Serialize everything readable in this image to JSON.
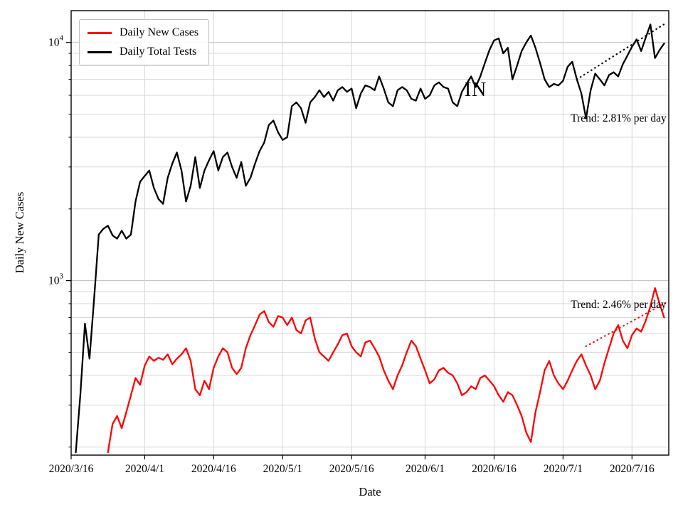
{
  "chart_data": {
    "type": "line",
    "title": "",
    "xlabel": "Date",
    "ylabel": "Daily New Cases",
    "y_scale": "log",
    "grid": true,
    "x_start_date": "2020/3/16",
    "x_range_days": [
      0,
      130
    ],
    "y_range": [
      185,
      13600
    ],
    "x_ticks": [
      {
        "day": 0,
        "label": "2020/3/16"
      },
      {
        "day": 16,
        "label": "2020/4/1"
      },
      {
        "day": 31,
        "label": "2020/4/16"
      },
      {
        "day": 46,
        "label": "2020/5/1"
      },
      {
        "day": 61,
        "label": "2020/5/16"
      },
      {
        "day": 77,
        "label": "2020/6/1"
      },
      {
        "day": 92,
        "label": "2020/6/16"
      },
      {
        "day": 107,
        "label": "2020/7/1"
      },
      {
        "day": 122,
        "label": "2020/7/16"
      }
    ],
    "y_ticks": [
      {
        "value": 1000,
        "base": "10",
        "exponent": "3"
      },
      {
        "value": 10000,
        "base": "10",
        "exponent": "4"
      }
    ],
    "legend": {
      "position": "upper left"
    },
    "annotations": [
      {
        "text": "IN",
        "day": 88,
        "value": 6300
      }
    ],
    "series": [
      {
        "name": "Daily New Cases",
        "color": "#ff0000",
        "start_day": 8,
        "values": [
          190,
          250,
          270,
          240,
          280,
          330,
          390,
          365,
          440,
          480,
          460,
          475,
          465,
          490,
          445,
          470,
          490,
          520,
          460,
          350,
          330,
          380,
          350,
          430,
          480,
          520,
          500,
          430,
          405,
          430,
          520,
          590,
          650,
          720,
          745,
          670,
          640,
          710,
          700,
          650,
          700,
          620,
          600,
          680,
          700,
          570,
          500,
          480,
          460,
          500,
          540,
          590,
          600,
          530,
          500,
          480,
          550,
          560,
          520,
          480,
          420,
          380,
          350,
          400,
          440,
          500,
          560,
          530,
          470,
          420,
          370,
          385,
          420,
          430,
          410,
          400,
          370,
          330,
          340,
          360,
          350,
          390,
          400,
          380,
          360,
          330,
          310,
          340,
          330,
          300,
          270,
          230,
          210,
          280,
          340,
          420,
          460,
          400,
          370,
          350,
          380,
          420,
          460,
          490,
          440,
          400,
          350,
          380,
          450,
          520,
          600,
          650,
          560,
          520,
          590,
          630,
          610,
          680,
          780,
          930,
          800,
          700
        ],
        "trend": {
          "label": "Trend: 2.46% per day",
          "rate_percent_per_day": 2.46,
          "line": {
            "day1": 112,
            "value1": 530,
            "day2": 129.5,
            "value2": 810
          },
          "label_pos": {
            "day": 129.5,
            "value": 790
          }
        }
      },
      {
        "name": "Daily Total Tests",
        "color": "#000000",
        "start_day": 1,
        "values": [
          190,
          330,
          660,
          470,
          840,
          1560,
          1650,
          1700,
          1550,
          1500,
          1620,
          1500,
          1560,
          2150,
          2600,
          2750,
          2900,
          2450,
          2200,
          2100,
          2700,
          3100,
          3450,
          2900,
          2150,
          2500,
          3300,
          2450,
          2900,
          3200,
          3500,
          2900,
          3300,
          3450,
          3000,
          2700,
          3150,
          2500,
          2700,
          3100,
          3500,
          3800,
          4500,
          4700,
          4200,
          3900,
          4000,
          5400,
          5600,
          5300,
          4600,
          5600,
          5900,
          6300,
          5900,
          6200,
          5700,
          6300,
          6500,
          6200,
          6400,
          5300,
          6100,
          6600,
          6500,
          6300,
          7200,
          6400,
          5600,
          5400,
          6300,
          6500,
          6300,
          5800,
          5700,
          6400,
          5800,
          6000,
          6600,
          6800,
          6500,
          6400,
          5600,
          5400,
          6200,
          6700,
          7200,
          6500,
          7200,
          8200,
          9300,
          10200,
          10400,
          9000,
          9500,
          7000,
          8000,
          9200,
          10000,
          10700,
          9500,
          8200,
          7000,
          6500,
          6700,
          6600,
          6900,
          7900,
          8300,
          7000,
          6100,
          4800,
          6300,
          7400,
          7000,
          6600,
          7300,
          7500,
          7200,
          8100,
          8800,
          9600,
          10300,
          9200,
          10500,
          11900,
          8600,
          9300,
          9900
        ],
        "trend": {
          "label": "Trend: 2.81% per day",
          "rate_percent_per_day": 2.81,
          "line": {
            "day1": 110,
            "value1": 7000,
            "day2": 129.5,
            "value2": 12100
          },
          "label_pos": {
            "day": 129.5,
            "value": 4800
          }
        }
      }
    ]
  }
}
